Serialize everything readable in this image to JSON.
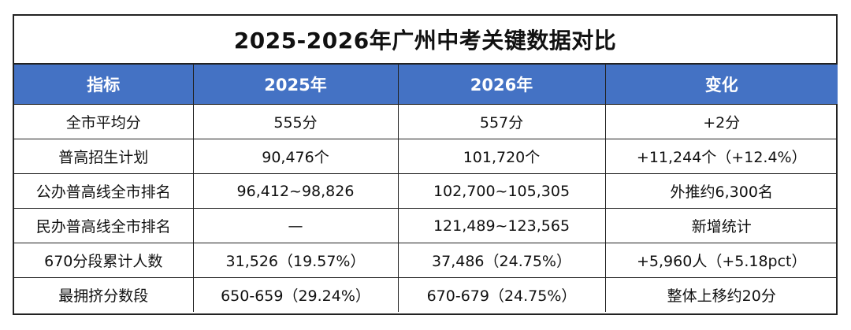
{
  "table": {
    "title": "2025-2026年广州中考关键数据对比",
    "headers": [
      "指标",
      "2025年",
      "2026年",
      "变化"
    ],
    "rows": [
      [
        "全市平均分",
        "555分",
        "557分",
        "+2分"
      ],
      [
        "普高招生计划",
        "90,476个",
        "101,720个",
        "+11,244个（+12.4%）"
      ],
      [
        "公办普高线全市排名",
        "96,412~98,826",
        "102,700~105,305",
        "外推约6,300名"
      ],
      [
        "民办普高线全市排名",
        "—",
        "121,489~123,565",
        "新增统计"
      ],
      [
        "670分段累计人数",
        "31,526（19.57%）",
        "37,486（24.75%）",
        "+5,960人（+5.18pct）"
      ],
      [
        "最拥挤分数段",
        "650-659（29.24%）",
        "670-679（24.75%）",
        "整体上移约20分"
      ]
    ],
    "colors": {
      "header_bg": "#4472c4",
      "header_text": "#ffffff",
      "border": "#222222"
    }
  }
}
